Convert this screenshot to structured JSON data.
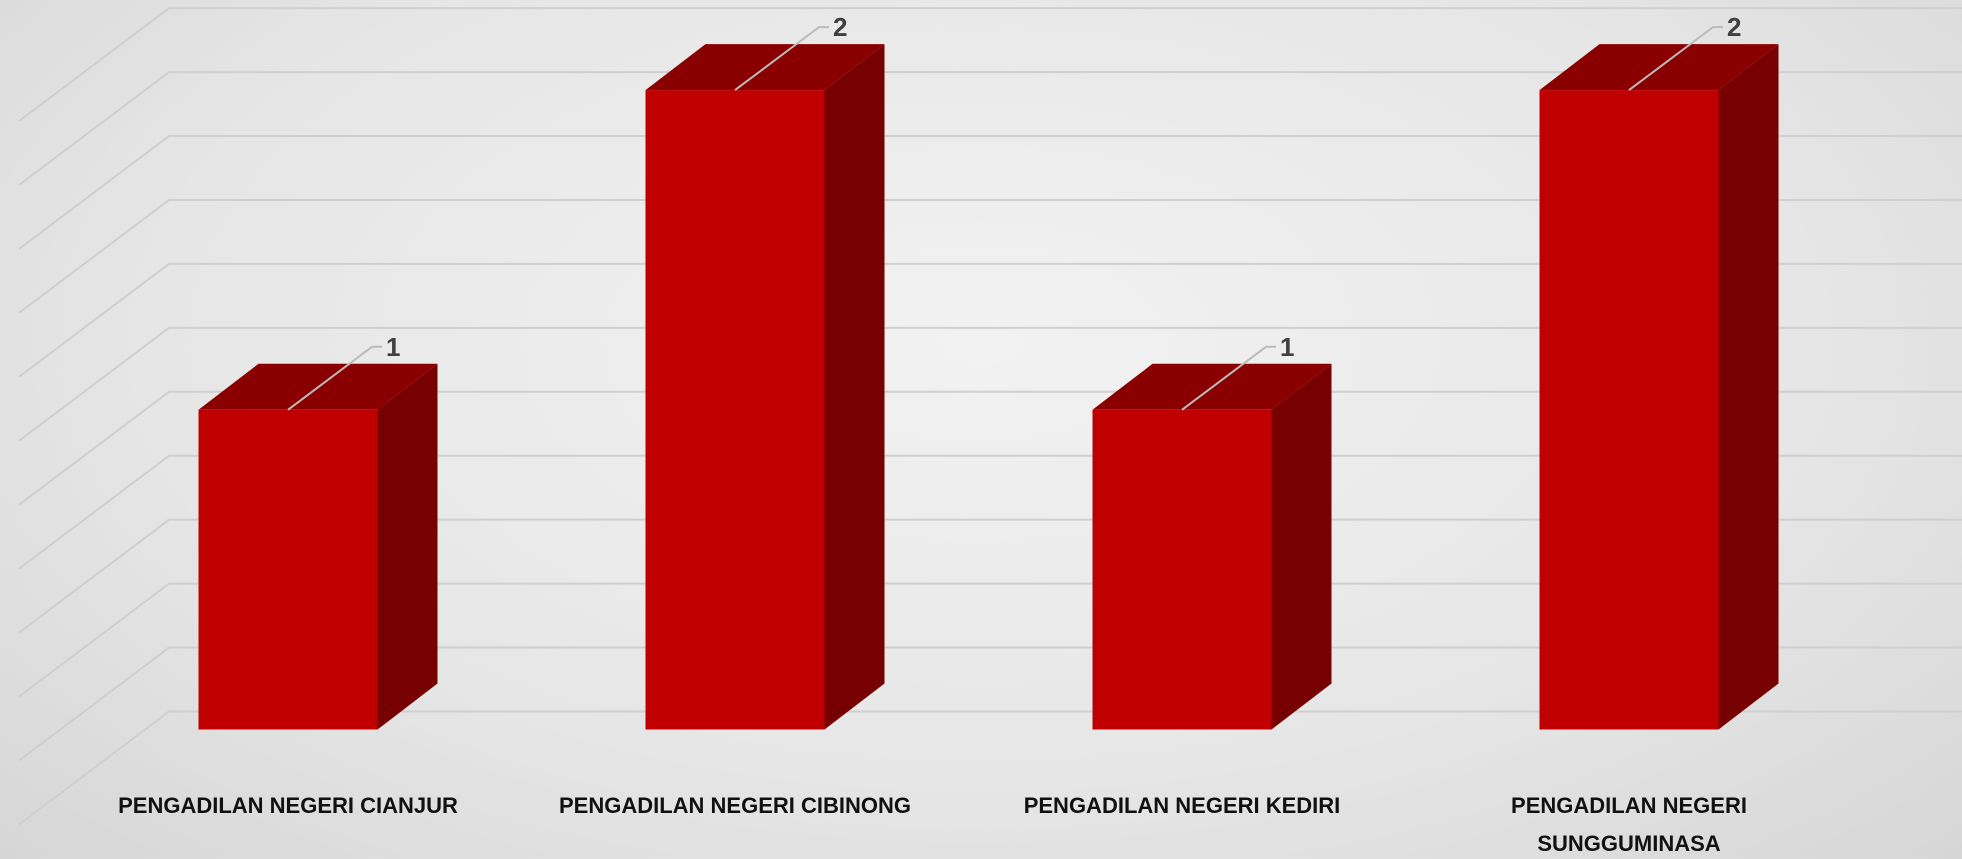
{
  "chart_data": {
    "type": "bar3d",
    "categories": [
      "PENGADILAN NEGERI CIANJUR",
      "PENGADILAN NEGERI CIBINONG",
      "PENGADILAN NEGERI KEDIRI",
      "PENGADILAN NEGERI SUNGGUMINASA"
    ],
    "values": [
      1,
      2,
      1,
      2
    ],
    "color": "#c00000",
    "ylim": [
      0,
      2.2
    ],
    "yticks": [
      0,
      0.2,
      0.4,
      0.6,
      0.8,
      1,
      1.2,
      1.4,
      1.6,
      1.8,
      2,
      2.2
    ],
    "grid": true
  }
}
